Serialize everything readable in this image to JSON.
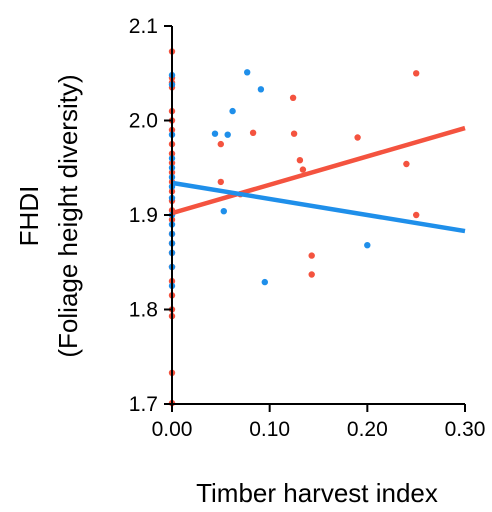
{
  "chart_data": {
    "type": "scatter",
    "title": "",
    "xlabel": "Timber harvest index",
    "ylabel": [
      "FHDI",
      "(Foliage height diversity)"
    ],
    "xlim": [
      0,
      0.3
    ],
    "ylim": [
      1.7,
      2.1
    ],
    "xticks": [
      "0.00",
      "0.10",
      "0.20",
      "0.30"
    ],
    "xtick_values": [
      0,
      0.1,
      0.2,
      0.3
    ],
    "yticks": [
      "1.7",
      "1.8",
      "1.9",
      "2.0",
      "2.1"
    ],
    "ytick_values": [
      1.7,
      1.8,
      1.9,
      2.0,
      2.1
    ],
    "grid": false,
    "legend": "none",
    "series": [
      {
        "color": "#f4533f",
        "points": [
          [
            0,
            2.073
          ],
          [
            0,
            2.045
          ],
          [
            0,
            2.04
          ],
          [
            0,
            2.035
          ],
          [
            0,
            2.01
          ],
          [
            0,
            2.0
          ],
          [
            0,
            1.99
          ],
          [
            0,
            1.975
          ],
          [
            0,
            1.965
          ],
          [
            0,
            1.955
          ],
          [
            0,
            1.945
          ],
          [
            0,
            1.935
          ],
          [
            0,
            1.925
          ],
          [
            0,
            1.915
          ],
          [
            0,
            1.905
          ],
          [
            0,
            1.895
          ],
          [
            0,
            1.88
          ],
          [
            0,
            1.87
          ],
          [
            0,
            1.86
          ],
          [
            0,
            1.845
          ],
          [
            0,
            1.83
          ],
          [
            0,
            1.815
          ],
          [
            0,
            1.8
          ],
          [
            0,
            1.793
          ],
          [
            0,
            1.733
          ],
          [
            0,
            1.701
          ],
          [
            0.05,
            1.975
          ],
          [
            0.05,
            1.935
          ],
          [
            0.07,
            1.922
          ],
          [
            0.083,
            1.987
          ],
          [
            0.124,
            2.024
          ],
          [
            0.125,
            1.986
          ],
          [
            0.131,
            1.958
          ],
          [
            0.134,
            1.948
          ],
          [
            0.143,
            1.857
          ],
          [
            0.143,
            1.837
          ],
          [
            0.19,
            1.982
          ],
          [
            0.24,
            1.954
          ],
          [
            0.25,
            2.05
          ],
          [
            0.25,
            1.9
          ]
        ],
        "fit": {
          "x": [
            0,
            0.3
          ],
          "y": [
            1.902,
            1.992
          ]
        }
      },
      {
        "color": "#1f8fea",
        "points": [
          [
            0,
            2.048
          ],
          [
            0,
            2.038
          ],
          [
            0,
            1.985
          ],
          [
            0,
            1.96
          ],
          [
            0,
            1.95
          ],
          [
            0,
            1.94
          ],
          [
            0,
            1.93
          ],
          [
            0,
            1.918
          ],
          [
            0,
            1.9
          ],
          [
            0,
            1.89
          ],
          [
            0,
            1.88
          ],
          [
            0,
            1.87
          ],
          [
            0,
            1.86
          ],
          [
            0,
            1.845
          ],
          [
            0,
            1.825
          ],
          [
            0.044,
            1.986
          ],
          [
            0.053,
            1.904
          ],
          [
            0.057,
            1.985
          ],
          [
            0.062,
            2.01
          ],
          [
            0.077,
            2.051
          ],
          [
            0.091,
            2.033
          ],
          [
            0.095,
            1.829
          ],
          [
            0.2,
            1.868
          ]
        ],
        "fit": {
          "x": [
            0,
            0.3
          ],
          "y": [
            1.934,
            1.883
          ]
        }
      }
    ]
  }
}
